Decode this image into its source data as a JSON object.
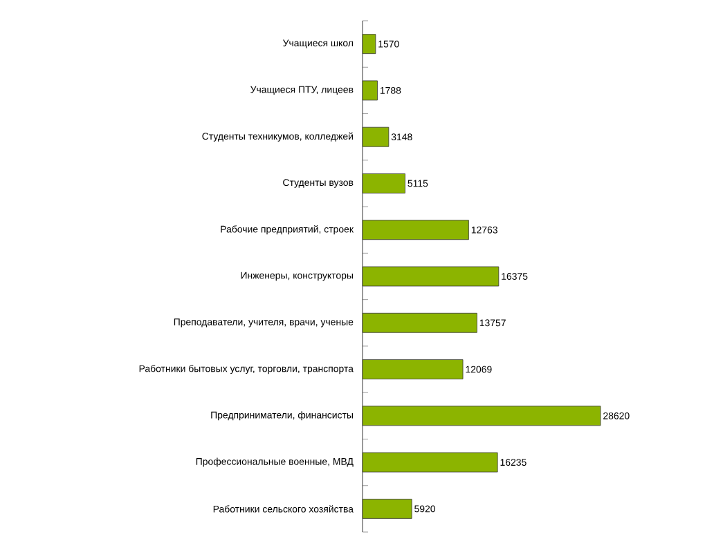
{
  "chart_data": {
    "type": "bar",
    "orientation": "horizontal",
    "data_labels": true,
    "categories": [
      "Учащиеся школ",
      "Учащиеся ПТУ, лицеев",
      "Студенты техникумов, колледжей",
      "Студенты вузов",
      "Рабочие предприятий, строек",
      "Инженеры, конструкторы",
      "Преподаватели, учителя, врачи, ученые",
      "Работники бытовых услуг, торговли, транспорта",
      "Предприниматели, финансисты",
      "Профессиональные военные, МВД",
      "Работники сельского хозяйства"
    ],
    "values": [
      1570,
      1788,
      3148,
      5115,
      12763,
      16375,
      13757,
      12069,
      28620,
      16235,
      5920
    ],
    "color": "#8cb400"
  }
}
